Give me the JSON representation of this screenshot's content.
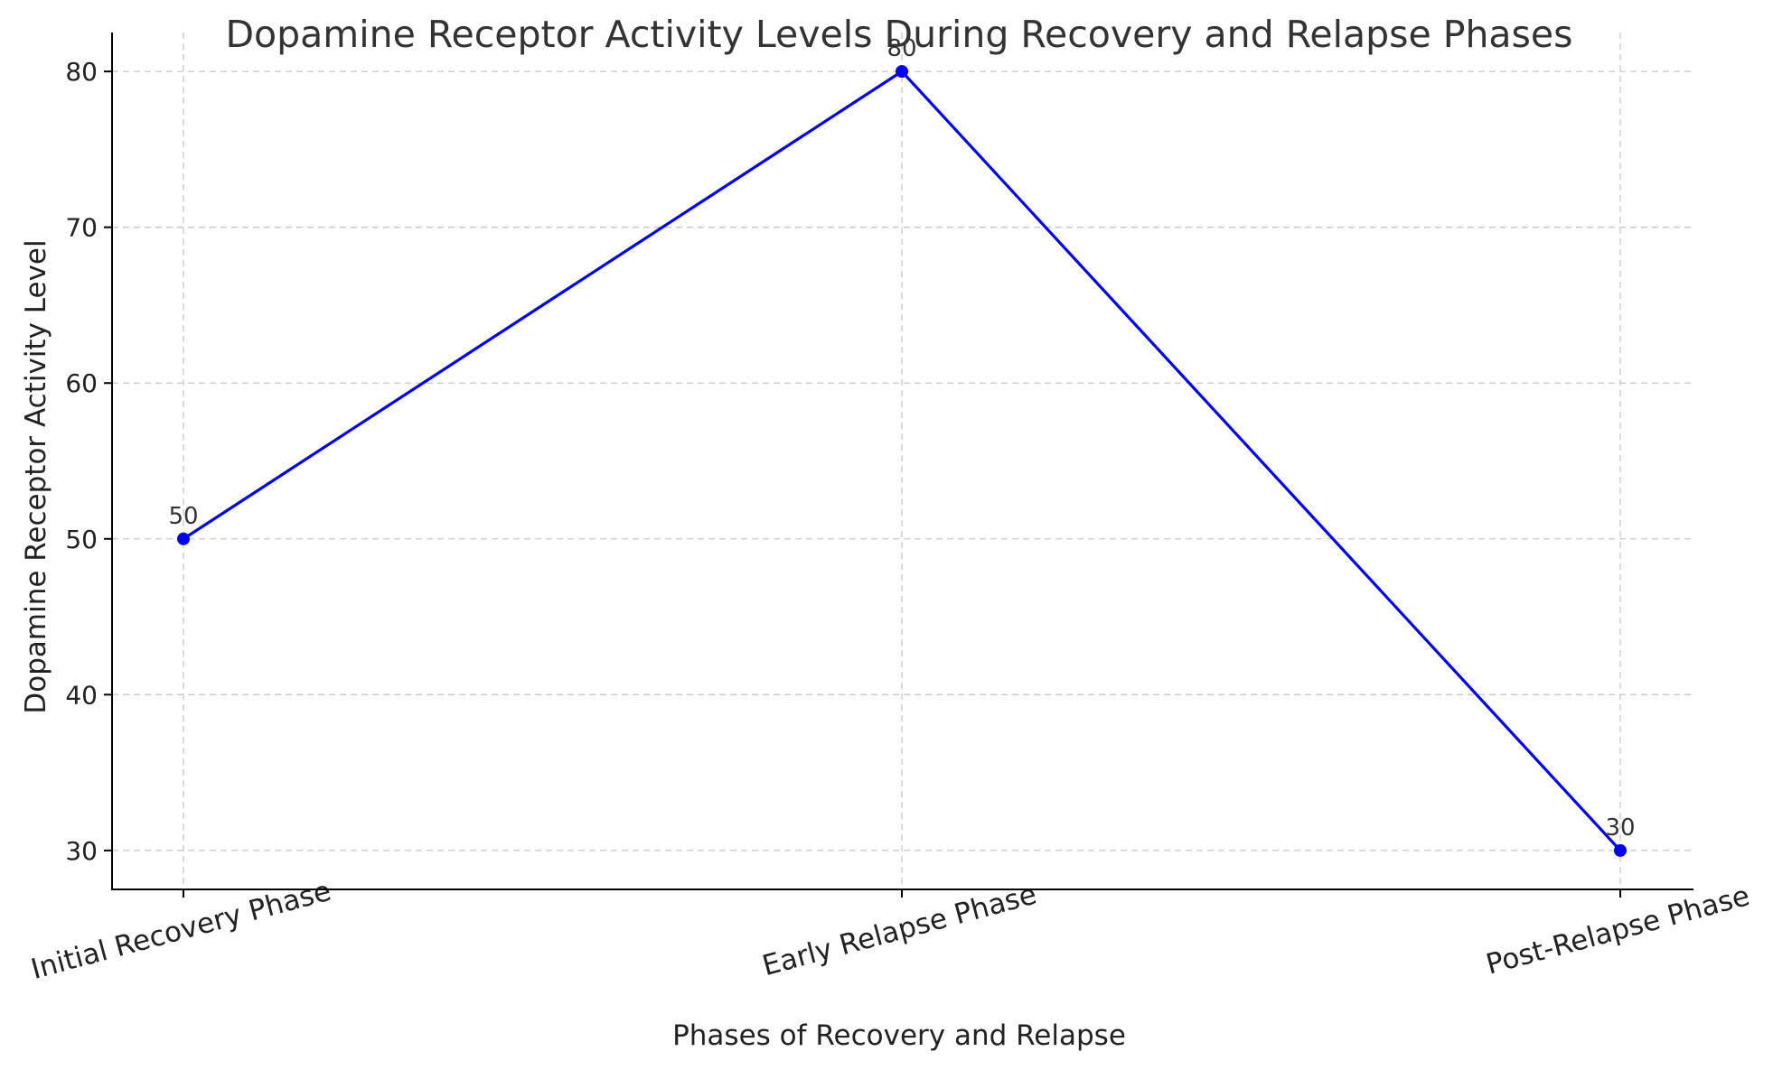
{
  "chart_data": {
    "type": "line",
    "title": "Dopamine Receptor Activity Levels During Recovery and Relapse Phases",
    "xlabel": "Phases of Recovery and Relapse",
    "ylabel": "Dopamine Receptor Activity Level",
    "categories": [
      "Initial Recovery Phase",
      "Early Relapse Phase",
      "Post-Relapse Phase"
    ],
    "series": [
      {
        "values": [
          50,
          80,
          30
        ],
        "color": "#0000ee"
      }
    ],
    "data_labels": [
      "50",
      "80",
      "30"
    ],
    "y_ticks": [
      30,
      40,
      50,
      60,
      70,
      80
    ],
    "ylim": [
      27.5,
      82.5
    ],
    "grid": true,
    "legend": "none"
  }
}
